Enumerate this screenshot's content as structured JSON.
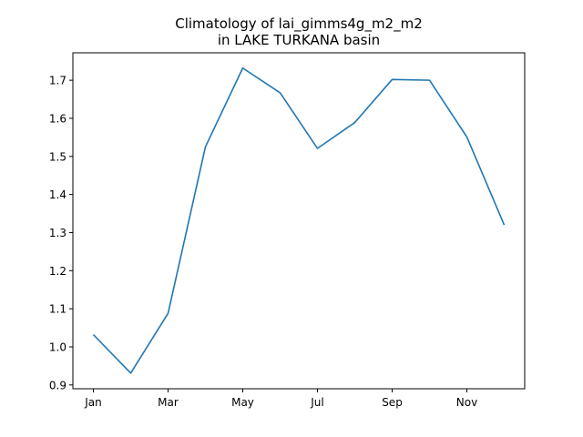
{
  "chart_data": {
    "type": "line",
    "title_line1": "Climatology of lai_gimms4g_m2_m2",
    "title_line2": "in LAKE TURKANA basin",
    "xlabel": "",
    "ylabel": "",
    "x": [
      "Jan",
      "Feb",
      "Mar",
      "Apr",
      "May",
      "Jun",
      "Jul",
      "Aug",
      "Sep",
      "Oct",
      "Nov",
      "Dec"
    ],
    "x_tick_labels": [
      "Jan",
      "Mar",
      "May",
      "Jul",
      "Sep",
      "Nov"
    ],
    "series": [
      {
        "color": "#1f77b4",
        "values": [
          1.032,
          0.931,
          1.088,
          1.525,
          1.732,
          1.667,
          1.521,
          1.589,
          1.702,
          1.7,
          1.551,
          1.32
        ]
      }
    ],
    "y_ticks": [
      0.9,
      1.0,
      1.1,
      1.2,
      1.3,
      1.4,
      1.5,
      1.6,
      1.7
    ],
    "ylim": [
      0.89,
      1.772
    ],
    "grid": false,
    "legend": "none"
  }
}
